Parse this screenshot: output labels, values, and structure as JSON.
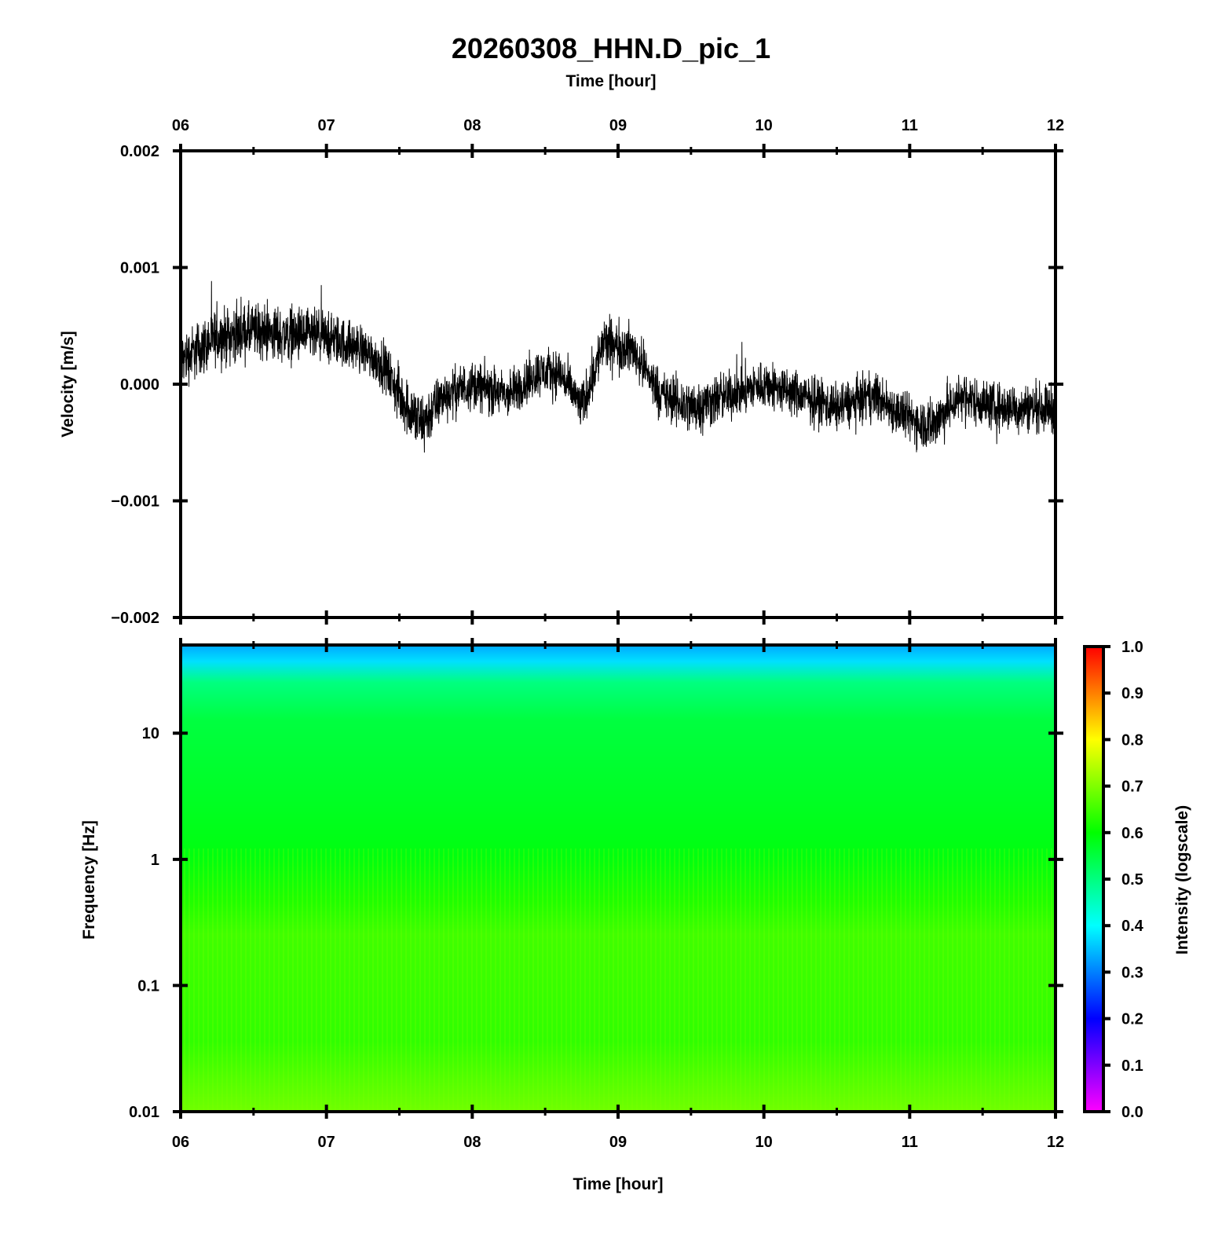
{
  "chart_data": [
    {
      "type": "line",
      "title": "20260308_HHN.D_pic_1",
      "xlabel_top": "Time [hour]",
      "ylabel": "Velocity [m/s]",
      "x_ticks": [
        "06",
        "07",
        "08",
        "09",
        "10",
        "11",
        "12"
      ],
      "y_ticks": [
        "0.002",
        "0.001",
        "0.000",
        "−0.001",
        "−0.002"
      ],
      "xlim": [
        6,
        12
      ],
      "ylim": [
        -0.002,
        0.002
      ],
      "grid": false,
      "line_color": "#000000",
      "series": [
        {
          "x": [
            6.0,
            6.25,
            6.5,
            6.75,
            7.0,
            7.25,
            7.4,
            7.5,
            7.65,
            7.8,
            8.0,
            8.25,
            8.45,
            8.6,
            8.75,
            8.9,
            9.1,
            9.3,
            9.5,
            9.75,
            10.0,
            10.25,
            10.5,
            10.75,
            11.0,
            11.15,
            11.35,
            11.6,
            11.8,
            12.0
          ],
          "center": [
            0.0002,
            0.0004,
            0.00045,
            0.00042,
            0.0004,
            0.0003,
            0.00015,
            -0.0001,
            -0.00035,
            -0.0001,
            0.0,
            -0.0001,
            0.0001,
            0.0001,
            -0.0002,
            0.00035,
            0.0003,
            -0.0001,
            -0.0002,
            -0.0001,
            0.0,
            -0.0001,
            -0.0002,
            -0.0001,
            -0.0003,
            -0.00035,
            -0.0001,
            -0.0002,
            -0.0002,
            -0.0002
          ],
          "amplitude": [
            0.00035,
            0.00035,
            0.00035,
            0.00035,
            0.00033,
            0.0003,
            0.0003,
            0.00035,
            0.0004,
            0.0003,
            0.0003,
            0.0003,
            0.0003,
            0.0003,
            0.0003,
            0.00035,
            0.0003,
            0.0003,
            0.00035,
            0.0003,
            0.0003,
            0.0003,
            0.0003,
            0.0003,
            0.0003,
            0.00035,
            0.0003,
            0.0003,
            0.0003,
            0.0003
          ]
        }
      ]
    },
    {
      "type": "heatmap",
      "xlabel": "Time [hour]",
      "ylabel": "Frequency [Hz]",
      "x_ticks": [
        "06",
        "07",
        "08",
        "09",
        "10",
        "11",
        "12"
      ],
      "y_ticks": [
        "10",
        "1",
        "0.1",
        "0.01"
      ],
      "xlim": [
        6,
        12
      ],
      "ylim": [
        0.01,
        50
      ],
      "yscale": "log",
      "colorbar": {
        "label": "Intensity (logscale)",
        "ticks": [
          "1.0",
          "0.9",
          "0.8",
          "0.7",
          "0.6",
          "0.5",
          "0.4",
          "0.3",
          "0.2",
          "0.1",
          "0.0"
        ],
        "range": [
          0.0,
          1.0
        ],
        "colormap": [
          "#ff00ff",
          "#0000ff",
          "#00ffff",
          "#00ff00",
          "#ffff00",
          "#ff0000"
        ]
      },
      "intensity_profile": {
        "frequency_hz": [
          0.01,
          0.1,
          0.3,
          1,
          10,
          30,
          50
        ],
        "intensity": [
          0.66,
          0.62,
          0.63,
          0.6,
          0.57,
          0.47,
          0.38
        ]
      }
    }
  ]
}
